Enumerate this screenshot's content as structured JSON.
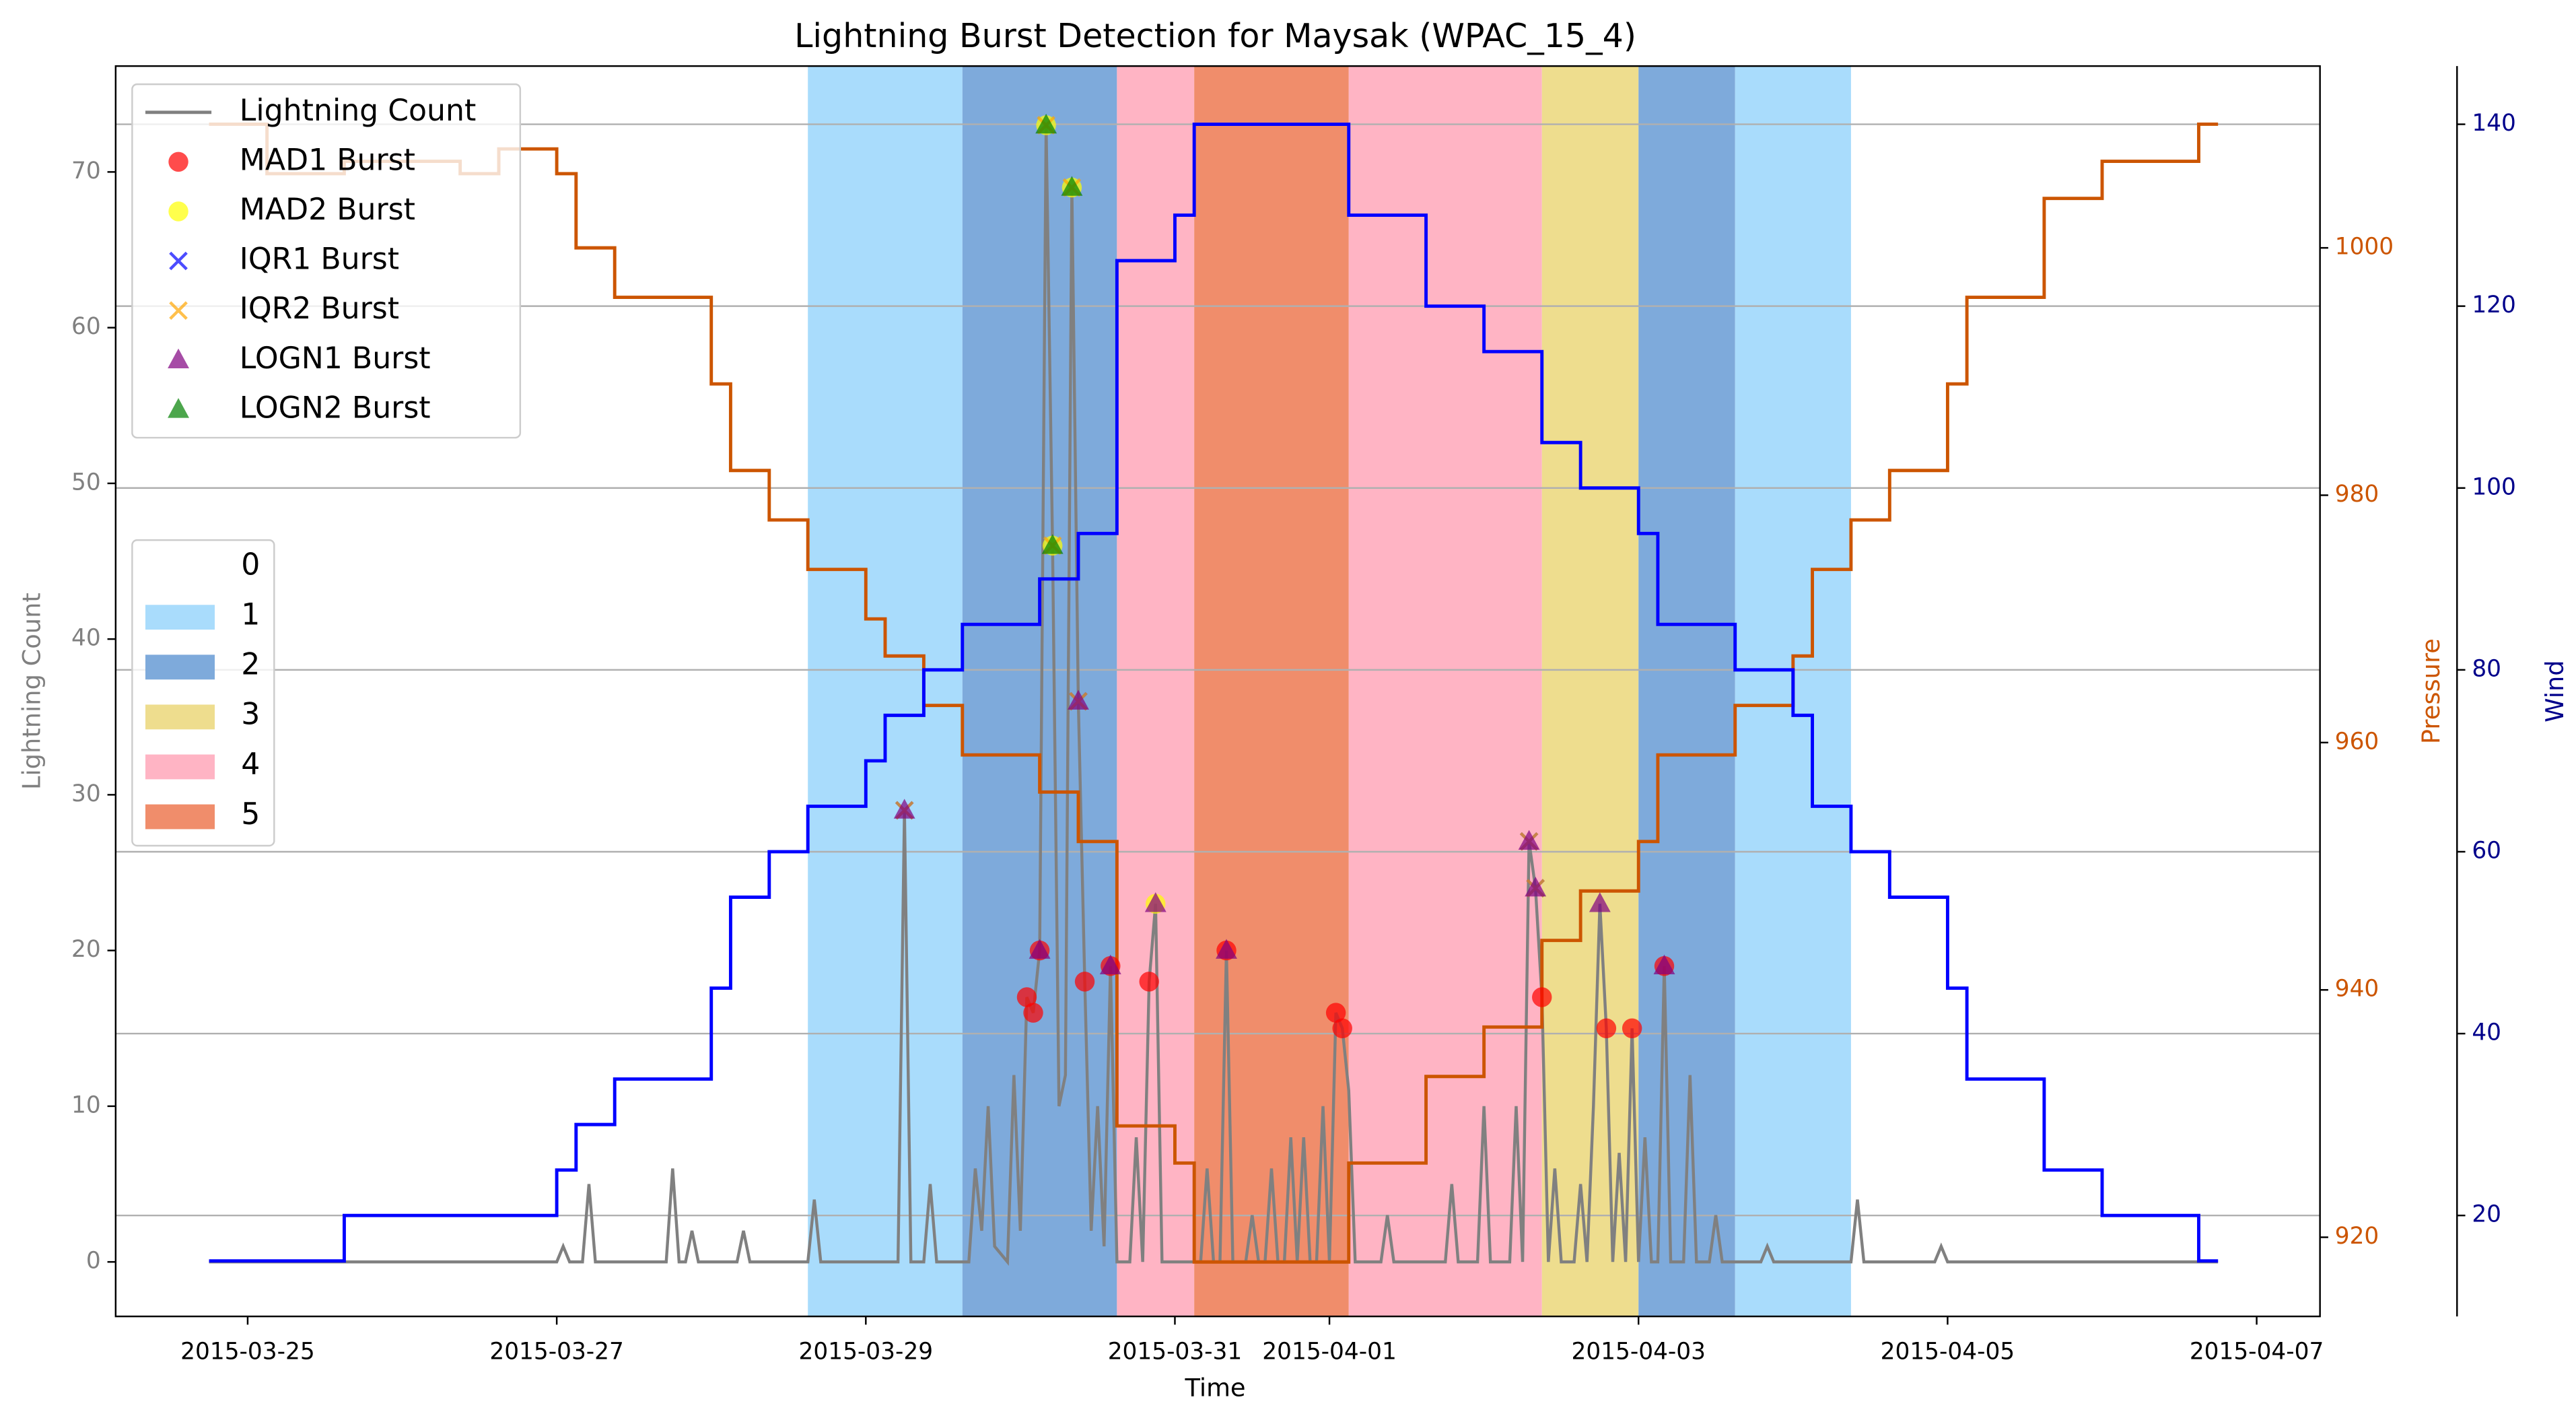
{
  "chart_data": {
    "type": "line",
    "title": "Lightning Burst Detection for Maysak (WPAC_15_4)",
    "xlabel": "Time",
    "ylabel": "Lightning Count",
    "y2label": "Pressure",
    "y3label": "Wind",
    "xlim": [
      "2015-03-24 03:30",
      "2015-04-07 09:50"
    ],
    "xticks": [
      "2015-03-25",
      "2015-03-27",
      "2015-03-29",
      "2015-03-31",
      "2015-04-01",
      "2015-04-03",
      "2015-04-05",
      "2015-04-07"
    ],
    "ylim": [
      -3.5,
      76.8
    ],
    "yticks": [
      0,
      10,
      20,
      30,
      40,
      50,
      60,
      70
    ],
    "y2lim": [
      913.6,
      1014.7
    ],
    "y2ticks": [
      920,
      940,
      960,
      980,
      1000
    ],
    "y3lim": [
      8.9,
      146.4
    ],
    "y3ticks": [
      20,
      40,
      60,
      80,
      100,
      120,
      140
    ],
    "grid": true,
    "grid_axis": "y3",
    "legend": "upper left",
    "ylabel_color": "#808080",
    "y2label_color": "#cc5500",
    "y3label_color": "#00008b",
    "intensity": {
      "legend": "center left",
      "labels": [
        "0",
        "1",
        "2",
        "3",
        "4",
        "5"
      ],
      "colors": [
        "#ffffff",
        "#a9dcfc",
        "#7eaadb",
        "#eedd8e",
        "#ffb4c4",
        "#f08d6b"
      ],
      "bands": [
        {
          "start": "2015-03-28 15:00",
          "end": "2015-03-29 15:00",
          "category": 1
        },
        {
          "start": "2015-03-29 15:00",
          "end": "2015-03-30 15:00",
          "category": 2
        },
        {
          "start": "2015-03-30 15:00",
          "end": "2015-03-31 03:00",
          "category": 4
        },
        {
          "start": "2015-03-31 03:00",
          "end": "2015-04-01 03:00",
          "category": 5
        },
        {
          "start": "2015-04-01 03:00",
          "end": "2015-04-02 09:00",
          "category": 4
        },
        {
          "start": "2015-04-02 09:00",
          "end": "2015-04-03 00:00",
          "category": 3
        },
        {
          "start": "2015-04-03 00:00",
          "end": "2015-04-03 15:00",
          "category": 2
        },
        {
          "start": "2015-04-03 15:00",
          "end": "2015-04-04 09:00",
          "category": 1
        }
      ]
    },
    "series": [
      {
        "name": "Lightning Count",
        "color": "#808080",
        "axis": "y",
        "style": "line",
        "x": [
          "2015-03-24 18:00",
          "2015-03-27 00:00",
          "2015-03-27 01:00",
          "2015-03-27 02:00",
          "2015-03-27 04:00",
          "2015-03-27 05:00",
          "2015-03-27 06:00",
          "2015-03-27 17:00",
          "2015-03-27 18:00",
          "2015-03-27 19:00",
          "2015-03-27 20:00",
          "2015-03-27 21:00",
          "2015-03-27 22:00",
          "2015-03-28 04:00",
          "2015-03-28 05:00",
          "2015-03-28 06:00",
          "2015-03-28 15:00",
          "2015-03-28 16:00",
          "2015-03-28 17:00",
          "2015-03-29 05:00",
          "2015-03-29 06:00",
          "2015-03-29 07:00",
          "2015-03-29 09:00",
          "2015-03-29 10:00",
          "2015-03-29 11:00",
          "2015-03-29 16:00",
          "2015-03-29 17:00",
          "2015-03-29 18:00",
          "2015-03-29 19:00",
          "2015-03-29 20:00",
          "2015-03-29 22:00",
          "2015-03-29 23:00",
          "2015-03-30 00:00",
          "2015-03-30 01:00",
          "2015-03-30 02:00",
          "2015-03-30 03:00",
          "2015-03-30 04:00",
          "2015-03-30 05:00",
          "2015-03-30 06:00",
          "2015-03-30 07:00",
          "2015-03-30 08:00",
          "2015-03-30 09:00",
          "2015-03-30 10:00",
          "2015-03-30 11:00",
          "2015-03-30 12:00",
          "2015-03-30 13:00",
          "2015-03-30 14:00",
          "2015-03-30 15:00",
          "2015-03-30 17:00",
          "2015-03-30 18:00",
          "2015-03-30 19:00",
          "2015-03-30 20:00",
          "2015-03-30 21:00",
          "2015-03-30 22:00",
          "2015-03-31 04:00",
          "2015-03-31 05:00",
          "2015-03-31 06:00",
          "2015-03-31 07:00",
          "2015-03-31 08:00",
          "2015-03-31 09:00",
          "2015-03-31 11:00",
          "2015-03-31 12:00",
          "2015-03-31 13:00",
          "2015-03-31 14:00",
          "2015-03-31 15:00",
          "2015-03-31 16:00",
          "2015-03-31 17:00",
          "2015-03-31 18:00",
          "2015-03-31 19:00",
          "2015-03-31 20:00",
          "2015-03-31 21:00",
          "2015-03-31 22:00",
          "2015-03-31 23:00",
          "2015-04-01 00:00",
          "2015-04-01 01:00",
          "2015-04-01 02:00",
          "2015-04-01 03:00",
          "2015-04-01 04:00",
          "2015-04-01 08:00",
          "2015-04-01 09:00",
          "2015-04-01 10:00",
          "2015-04-01 18:00",
          "2015-04-01 19:00",
          "2015-04-01 20:00",
          "2015-04-01 23:00",
          "2015-04-02 00:00",
          "2015-04-02 01:00",
          "2015-04-02 04:00",
          "2015-04-02 05:00",
          "2015-04-02 06:00",
          "2015-04-02 07:00",
          "2015-04-02 08:00",
          "2015-04-02 09:00",
          "2015-04-02 10:00",
          "2015-04-02 11:00",
          "2015-04-02 12:00",
          "2015-04-02 14:00",
          "2015-04-02 15:00",
          "2015-04-02 16:00",
          "2015-04-02 17:00",
          "2015-04-02 18:00",
          "2015-04-02 19:00",
          "2015-04-02 20:00",
          "2015-04-02 21:00",
          "2015-04-02 22:00",
          "2015-04-02 23:00",
          "2015-04-03 00:00",
          "2015-04-03 01:00",
          "2015-04-03 02:00",
          "2015-04-03 03:00",
          "2015-04-03 04:00",
          "2015-04-03 05:00",
          "2015-04-03 07:00",
          "2015-04-03 08:00",
          "2015-04-03 09:00",
          "2015-04-03 11:00",
          "2015-04-03 12:00",
          "2015-04-03 13:00",
          "2015-04-03 19:00",
          "2015-04-03 20:00",
          "2015-04-03 21:00",
          "2015-04-04 09:00",
          "2015-04-04 10:00",
          "2015-04-04 11:00",
          "2015-04-04 22:00",
          "2015-04-04 23:00",
          "2015-04-05 00:00",
          "2015-04-06 18:00"
        ],
        "values": [
          0,
          0,
          1,
          0,
          0,
          5,
          0,
          0,
          6,
          0,
          0,
          2,
          0,
          0,
          2,
          0,
          0,
          4,
          0,
          0,
          29,
          0,
          0,
          5,
          0,
          0,
          6,
          2,
          10,
          1,
          0,
          12,
          2,
          17,
          16,
          20,
          73,
          46,
          10,
          12,
          69,
          36,
          18,
          2,
          10,
          1,
          19,
          0,
          0,
          8,
          0,
          18,
          23,
          0,
          0,
          6,
          0,
          0,
          20,
          0,
          0,
          3,
          0,
          0,
          6,
          0,
          0,
          8,
          0,
          8,
          0,
          0,
          10,
          0,
          16,
          15,
          11,
          0,
          0,
          3,
          0,
          0,
          5,
          0,
          0,
          10,
          0,
          0,
          10,
          0,
          27,
          24,
          17,
          0,
          6,
          0,
          0,
          5,
          0,
          10,
          23,
          15,
          0,
          7,
          0,
          15,
          0,
          8,
          0,
          0,
          19,
          0,
          0,
          12,
          0,
          0,
          3,
          0,
          0,
          1,
          0,
          0,
          4,
          0,
          0,
          1,
          0,
          0
        ]
      },
      {
        "color": "#cc5500",
        "axis": "y2",
        "style": "steps",
        "x": [
          "2015-03-24 18:00",
          "2015-03-25 03:00",
          "2015-03-25 15:00",
          "2015-03-26 09:00",
          "2015-03-26 15:00",
          "2015-03-27 00:00",
          "2015-03-27 03:00",
          "2015-03-27 09:00",
          "2015-03-28 00:00",
          "2015-03-28 03:00",
          "2015-03-28 09:00",
          "2015-03-28 15:00",
          "2015-03-29 00:00",
          "2015-03-29 03:00",
          "2015-03-29 09:00",
          "2015-03-29 15:00",
          "2015-03-30 03:00",
          "2015-03-30 09:00",
          "2015-03-30 15:00",
          "2015-03-31 00:00",
          "2015-03-31 03:00",
          "2015-04-01 03:00",
          "2015-04-01 15:00",
          "2015-04-02 00:00",
          "2015-04-02 09:00",
          "2015-04-02 15:00",
          "2015-04-03 00:00",
          "2015-04-03 03:00",
          "2015-04-03 15:00",
          "2015-04-04 00:00",
          "2015-04-04 03:00",
          "2015-04-04 09:00",
          "2015-04-04 15:00",
          "2015-04-05 00:00",
          "2015-04-05 03:00",
          "2015-04-05 15:00",
          "2015-04-06 00:00",
          "2015-04-06 15:00",
          "2015-04-06 18:00"
        ],
        "values": [
          1010,
          1006,
          1007,
          1006,
          1008,
          1006,
          1000,
          996,
          989,
          982,
          978,
          974,
          970,
          967,
          963,
          959,
          956,
          952,
          929,
          926,
          918,
          926,
          933,
          937,
          944,
          948,
          952,
          959,
          963,
          967,
          974,
          978,
          982,
          989,
          996,
          1004,
          1007,
          1010,
          1010
        ]
      },
      {
        "color": "#0000ff",
        "axis": "y3",
        "style": "steps",
        "x": [
          "2015-03-24 18:00",
          "2015-03-25 15:00",
          "2015-03-27 00:00",
          "2015-03-27 03:00",
          "2015-03-27 09:00",
          "2015-03-28 00:00",
          "2015-03-28 03:00",
          "2015-03-28 09:00",
          "2015-03-28 15:00",
          "2015-03-29 00:00",
          "2015-03-29 03:00",
          "2015-03-29 09:00",
          "2015-03-29 15:00",
          "2015-03-30 03:00",
          "2015-03-30 09:00",
          "2015-03-30 15:00",
          "2015-03-31 00:00",
          "2015-03-31 03:00",
          "2015-04-01 03:00",
          "2015-04-01 15:00",
          "2015-04-02 00:00",
          "2015-04-02 09:00",
          "2015-04-02 15:00",
          "2015-04-03 00:00",
          "2015-04-03 03:00",
          "2015-04-03 15:00",
          "2015-04-04 00:00",
          "2015-04-04 03:00",
          "2015-04-04 09:00",
          "2015-04-04 15:00",
          "2015-04-05 00:00",
          "2015-04-05 03:00",
          "2015-04-05 15:00",
          "2015-04-06 00:00",
          "2015-04-06 15:00",
          "2015-04-06 18:00"
        ],
        "values": [
          15,
          20,
          25,
          30,
          35,
          45,
          55,
          60,
          65,
          70,
          75,
          80,
          85,
          90,
          95,
          125,
          130,
          140,
          130,
          120,
          115,
          105,
          100,
          95,
          85,
          80,
          75,
          65,
          60,
          55,
          45,
          35,
          25,
          20,
          15,
          15
        ]
      },
      {
        "name": "MAD1 Burst",
        "color": "#ff0000",
        "axis": "y",
        "style": "scatter",
        "marker": "o",
        "x": [
          "2015-03-30 01:00",
          "2015-03-30 02:00",
          "2015-03-30 03:00",
          "2015-03-30 10:00",
          "2015-03-30 14:00",
          "2015-03-30 20:00",
          "2015-03-31 08:00",
          "2015-04-01 01:00",
          "2015-04-01 02:00",
          "2015-04-02 09:00",
          "2015-04-02 19:00",
          "2015-04-02 23:00",
          "2015-04-03 04:00"
        ],
        "values": [
          17,
          16,
          20,
          18,
          19,
          18,
          20,
          16,
          15,
          17,
          15,
          15,
          19
        ]
      },
      {
        "name": "MAD2 Burst",
        "color": "#ffff00",
        "axis": "y",
        "style": "scatter",
        "marker": "o",
        "x": [
          "2015-03-30 04:00",
          "2015-03-30 05:00",
          "2015-03-30 08:00",
          "2015-03-30 21:00"
        ],
        "values": [
          73,
          46,
          69,
          23
        ]
      },
      {
        "name": "IQR1 Burst",
        "color": "#0000ff",
        "axis": "y",
        "style": "scatter",
        "marker": "x",
        "x": [
          "2015-03-29 06:00",
          "2015-03-30 09:00",
          "2015-04-02 07:00",
          "2015-04-02 08:00"
        ],
        "values": [
          29,
          36,
          27,
          24
        ]
      },
      {
        "name": "IQR2 Burst",
        "color": "#ffa500",
        "axis": "y",
        "style": "scatter",
        "marker": "x",
        "x": [
          "2015-03-29 06:00",
          "2015-03-30 04:00",
          "2015-03-30 05:00",
          "2015-03-30 08:00",
          "2015-03-30 09:00",
          "2015-04-02 07:00",
          "2015-04-02 08:00"
        ],
        "values": [
          29,
          73,
          46,
          69,
          36,
          27,
          24
        ]
      },
      {
        "name": "LOGN1 Burst",
        "color": "#800080",
        "axis": "y",
        "style": "scatter",
        "marker": "^",
        "x": [
          "2015-03-29 06:00",
          "2015-03-30 03:00",
          "2015-03-30 09:00",
          "2015-03-30 14:00",
          "2015-03-30 21:00",
          "2015-03-31 08:00",
          "2015-04-02 07:00",
          "2015-04-02 08:00",
          "2015-04-02 18:00",
          "2015-04-03 04:00"
        ],
        "values": [
          29,
          20,
          36,
          19,
          23,
          20,
          27,
          24,
          23,
          19
        ]
      },
      {
        "name": "LOGN2 Burst",
        "color": "#008000",
        "axis": "y",
        "style": "scatter",
        "marker": "^",
        "x": [
          "2015-03-30 04:00",
          "2015-03-30 05:00",
          "2015-03-30 08:00"
        ],
        "values": [
          73,
          46,
          69
        ]
      }
    ]
  }
}
